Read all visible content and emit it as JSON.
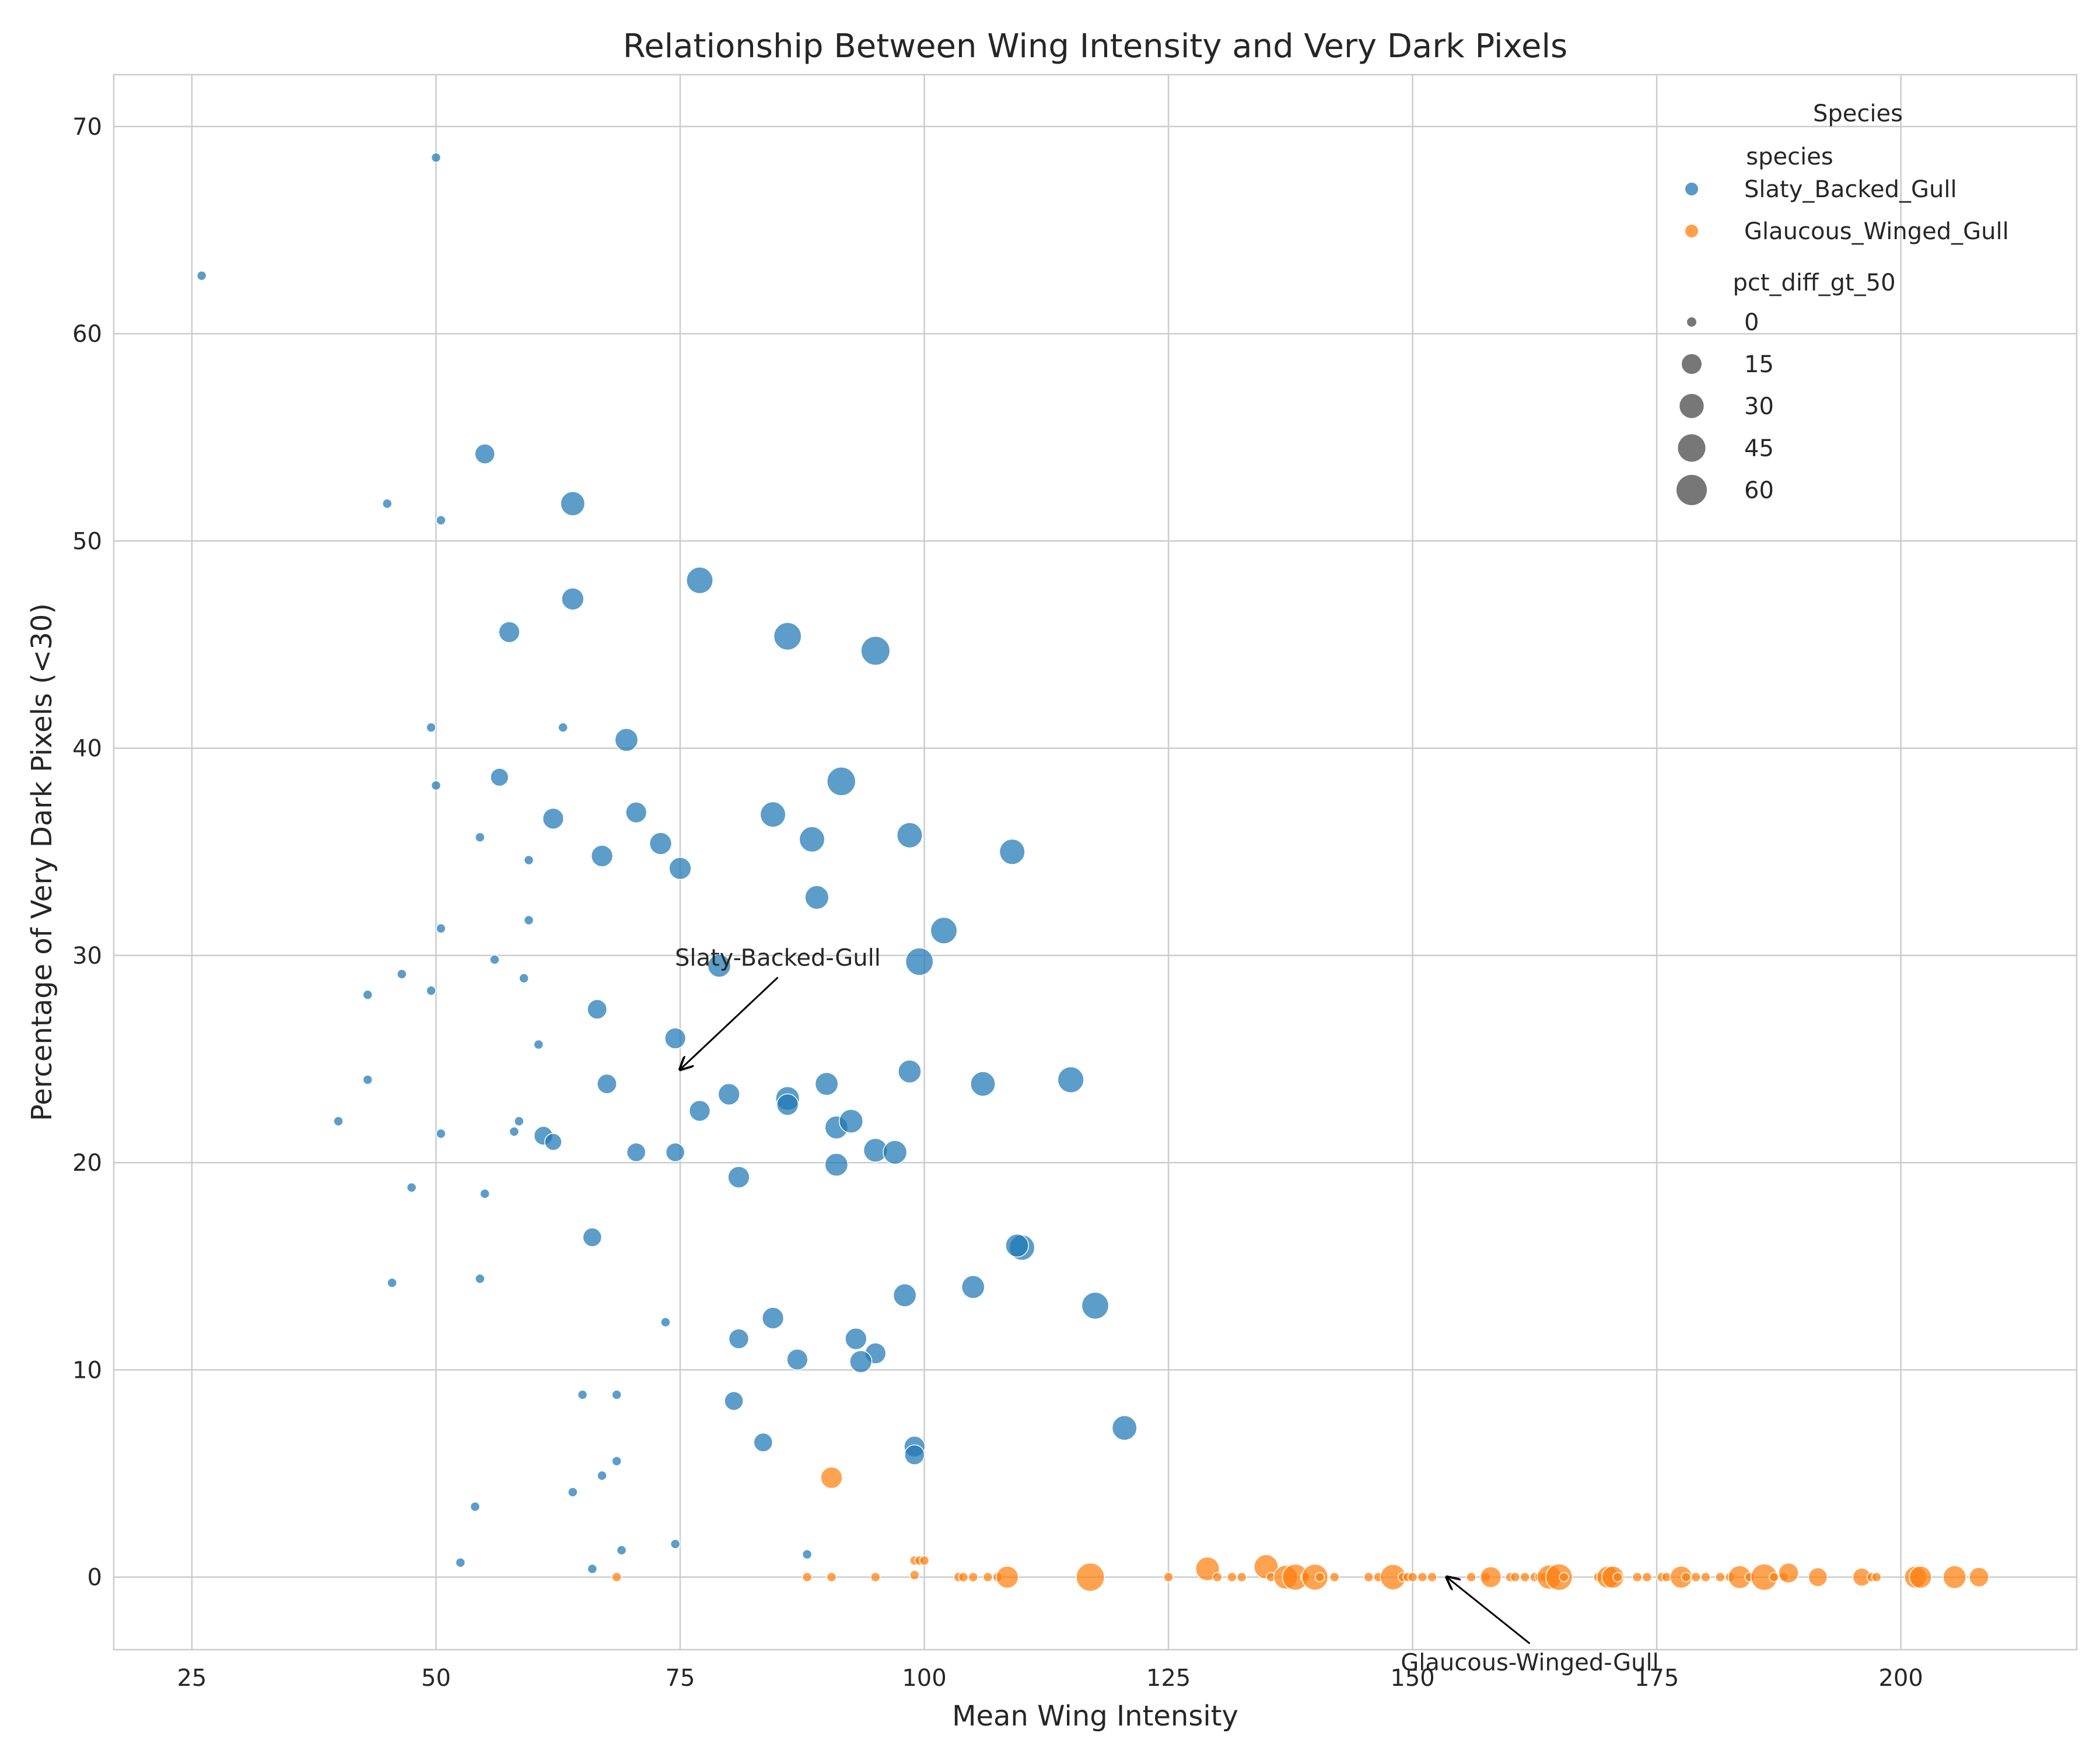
{
  "chart_data": {
    "type": "scatter",
    "title": "Relationship Between Wing Intensity and Very Dark Pixels",
    "xlabel": "Mean Wing Intensity",
    "ylabel": "Percentage of Very Dark Pixels (<30)",
    "xlim": [
      17,
      218
    ],
    "ylim": [
      -3.5,
      72.5
    ],
    "xticks": [
      25,
      50,
      75,
      100,
      125,
      150,
      175,
      200
    ],
    "yticks": [
      0,
      10,
      20,
      30,
      40,
      50,
      60,
      70
    ],
    "grid": true,
    "legend": {
      "placement": "top-right",
      "title": "Species",
      "hue_title": "species",
      "size_title": "pct_diff_gt_50",
      "size_entries": [
        {
          "label": "0",
          "value": 0
        },
        {
          "label": "15",
          "value": 15
        },
        {
          "label": "30",
          "value": 30
        },
        {
          "label": "45",
          "value": 45
        },
        {
          "label": "60",
          "value": 60
        }
      ]
    },
    "size_encoding": "pct_diff_gt_50",
    "colors": {
      "Slaty_Backed_Gull": "#1f77b4",
      "Glaucous_Winged_Gull": "#ff7f0e",
      "legend_size_marker": "#555555"
    },
    "series": [
      {
        "name": "Slaty_Backed_Gull",
        "points": [
          [
            26,
            62.8,
            0
          ],
          [
            50,
            68.5,
            0
          ],
          [
            55,
            54.2,
            15
          ],
          [
            45,
            51.8,
            0
          ],
          [
            50.5,
            51,
            0
          ],
          [
            64,
            51.8,
            30
          ],
          [
            64,
            47.2,
            22
          ],
          [
            57.5,
            45.6,
            18
          ],
          [
            77,
            48.1,
            40
          ],
          [
            86,
            45.4,
            45
          ],
          [
            95,
            44.7,
            52
          ],
          [
            49.5,
            41,
            0
          ],
          [
            63,
            41,
            0
          ],
          [
            69.5,
            40.4,
            25
          ],
          [
            56.5,
            38.6,
            10
          ],
          [
            50,
            38.2,
            0
          ],
          [
            62,
            36.6,
            18
          ],
          [
            70.5,
            36.9,
            18
          ],
          [
            54.5,
            35.7,
            0
          ],
          [
            59.5,
            34.6,
            0
          ],
          [
            67,
            34.8,
            20
          ],
          [
            73,
            35.4,
            22
          ],
          [
            75,
            34.2,
            22
          ],
          [
            84.5,
            36.8,
            35
          ],
          [
            88.5,
            35.6,
            35
          ],
          [
            91.5,
            38.4,
            50
          ],
          [
            98.5,
            35.8,
            35
          ],
          [
            109,
            35,
            35
          ],
          [
            89,
            32.8,
            28
          ],
          [
            102,
            31.2,
            40
          ],
          [
            99.5,
            29.7,
            45
          ],
          [
            50.5,
            31.3,
            0
          ],
          [
            59.5,
            31.7,
            0
          ],
          [
            79,
            29.5,
            25
          ],
          [
            46.5,
            29.1,
            0
          ],
          [
            56,
            29.8,
            0
          ],
          [
            59,
            28.9,
            0
          ],
          [
            43,
            28.1,
            0
          ],
          [
            49.5,
            28.3,
            0
          ],
          [
            66.5,
            27.4,
            14
          ],
          [
            60.5,
            25.7,
            0
          ],
          [
            74.5,
            26,
            18
          ],
          [
            43,
            24,
            0
          ],
          [
            67.5,
            23.8,
            14
          ],
          [
            98.5,
            24.4,
            25
          ],
          [
            106,
            23.8,
            32
          ],
          [
            115,
            24,
            38
          ],
          [
            40,
            22,
            0
          ],
          [
            50.5,
            21.4,
            0
          ],
          [
            58.5,
            22,
            0
          ],
          [
            58,
            21.5,
            0
          ],
          [
            61,
            21.3,
            12
          ],
          [
            62,
            21,
            8
          ],
          [
            77,
            22.5,
            18
          ],
          [
            80,
            23.3,
            20
          ],
          [
            86,
            23.1,
            28
          ],
          [
            86,
            22.8,
            20
          ],
          [
            90,
            23.8,
            25
          ],
          [
            91,
            21.7,
            25
          ],
          [
            92.5,
            22,
            28
          ],
          [
            70.5,
            20.5,
            12
          ],
          [
            74.5,
            20.5,
            12
          ],
          [
            95,
            20.6,
            28
          ],
          [
            97,
            20.5,
            28
          ],
          [
            91,
            19.9,
            25
          ],
          [
            81,
            19.3,
            20
          ],
          [
            47.5,
            18.8,
            0
          ],
          [
            55,
            18.5,
            0
          ],
          [
            66,
            16.4,
            12
          ],
          [
            110,
            15.9,
            35
          ],
          [
            109.5,
            16,
            25
          ],
          [
            45.5,
            14.2,
            0
          ],
          [
            54.5,
            14.4,
            0
          ],
          [
            98,
            13.6,
            25
          ],
          [
            105,
            14,
            25
          ],
          [
            117.5,
            13.1,
            42
          ],
          [
            73.5,
            12.3,
            0
          ],
          [
            81,
            11.5,
            15
          ],
          [
            84.5,
            12.5,
            20
          ],
          [
            93,
            11.5,
            20
          ],
          [
            95,
            10.8,
            18
          ],
          [
            87,
            10.5,
            18
          ],
          [
            93.5,
            10.4,
            22
          ],
          [
            65,
            8.8,
            0
          ],
          [
            68.5,
            8.8,
            0
          ],
          [
            80.5,
            8.5,
            12
          ],
          [
            120.5,
            7.2,
            32
          ],
          [
            83.5,
            6.5,
            12
          ],
          [
            99,
            6.3,
            18
          ],
          [
            99,
            5.9,
            15
          ],
          [
            68.5,
            5.6,
            0
          ],
          [
            67,
            4.9,
            0
          ],
          [
            64,
            4.1,
            0
          ],
          [
            54,
            3.4,
            0
          ],
          [
            69,
            1.3,
            0
          ],
          [
            74.5,
            1.6,
            0
          ],
          [
            88,
            1.1,
            0
          ],
          [
            52.5,
            0.7,
            0
          ],
          [
            66,
            0.4,
            0
          ]
        ]
      },
      {
        "name": "Glaucous_Winged_Gull",
        "points": [
          [
            90.5,
            4.8,
            20
          ],
          [
            99,
            0.8,
            0
          ],
          [
            99.5,
            0.8,
            0
          ],
          [
            68.5,
            0,
            0
          ],
          [
            88,
            0,
            0
          ],
          [
            90.5,
            0,
            0
          ],
          [
            95,
            0,
            0
          ],
          [
            99,
            0.1,
            0
          ],
          [
            100,
            0.8,
            0
          ],
          [
            103.5,
            0,
            0
          ],
          [
            104,
            0,
            0
          ],
          [
            105,
            0,
            0
          ],
          [
            106.5,
            0,
            0
          ],
          [
            107.5,
            0,
            0
          ],
          [
            108.5,
            0,
            22
          ],
          [
            117,
            0,
            48
          ],
          [
            125,
            0,
            0
          ],
          [
            129,
            0.4,
            28
          ],
          [
            130,
            0,
            0
          ],
          [
            131.5,
            0,
            0
          ],
          [
            132.5,
            0,
            0
          ],
          [
            135,
            0.5,
            30
          ],
          [
            135.5,
            0,
            0
          ],
          [
            137,
            0,
            28
          ],
          [
            138,
            0,
            38
          ],
          [
            139,
            0,
            0
          ],
          [
            140,
            0,
            38
          ],
          [
            140.5,
            0,
            0
          ],
          [
            142,
            0,
            0
          ],
          [
            145.5,
            0,
            0
          ],
          [
            146.5,
            0,
            0
          ],
          [
            148,
            0,
            35
          ],
          [
            149,
            0,
            0
          ],
          [
            149.5,
            0,
            0
          ],
          [
            150,
            0,
            0
          ],
          [
            151,
            0,
            0
          ],
          [
            152,
            0,
            0
          ],
          [
            156,
            0,
            0
          ],
          [
            157.5,
            0,
            0
          ],
          [
            158,
            0,
            18
          ],
          [
            160,
            0,
            0
          ],
          [
            160.5,
            0,
            0
          ],
          [
            161.5,
            0,
            0
          ],
          [
            162.5,
            0,
            0
          ],
          [
            163,
            0,
            0
          ],
          [
            163.5,
            0,
            0
          ],
          [
            164,
            0,
            30
          ],
          [
            165,
            0,
            40
          ],
          [
            165.5,
            0,
            0
          ],
          [
            169,
            0,
            0
          ],
          [
            170,
            0,
            22
          ],
          [
            170.5,
            0,
            22
          ],
          [
            171,
            0,
            0
          ],
          [
            173,
            0,
            0
          ],
          [
            174,
            0,
            0
          ],
          [
            175.5,
            0,
            0
          ],
          [
            176,
            0,
            0
          ],
          [
            177.5,
            0,
            22
          ],
          [
            178,
            0,
            0
          ],
          [
            179,
            0,
            0
          ],
          [
            180,
            0,
            0
          ],
          [
            181.5,
            0,
            0
          ],
          [
            182.5,
            0,
            0
          ],
          [
            183.5,
            0,
            25
          ],
          [
            184.5,
            0,
            0
          ],
          [
            186,
            0,
            40
          ],
          [
            187,
            0,
            0
          ],
          [
            188,
            0,
            0
          ],
          [
            188.5,
            0.2,
            15
          ],
          [
            191.5,
            0,
            12
          ],
          [
            196,
            0,
            10
          ],
          [
            197,
            0,
            0
          ],
          [
            197.5,
            0,
            0
          ],
          [
            201.5,
            0,
            22
          ],
          [
            202,
            0,
            22
          ],
          [
            205.5,
            0,
            25
          ],
          [
            208,
            0,
            14
          ]
        ]
      }
    ],
    "annotations": [
      {
        "text": "Slaty-Backed-Gull",
        "text_x": 85,
        "text_y": 29.5,
        "arrow_x": 75,
        "arrow_y": 24.5
      },
      {
        "text": "Glaucous-Winged-Gull",
        "text_x": 162,
        "text_y": -4.5,
        "arrow_x": 153.5,
        "arrow_y": 0
      }
    ]
  }
}
